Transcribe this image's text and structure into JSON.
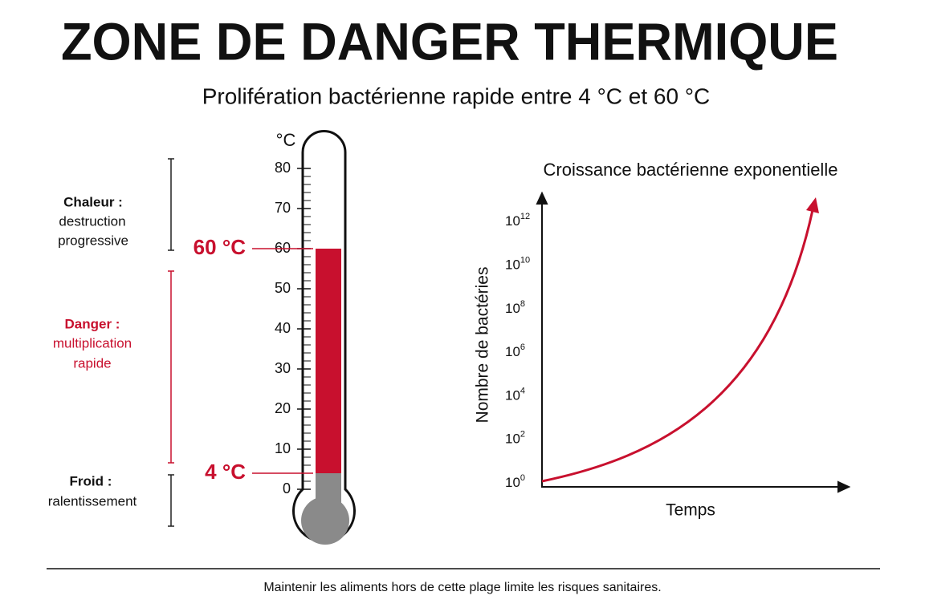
{
  "header": {
    "title": "ZONE DE DANGER THERMIQUE",
    "subtitle": "Prolifération bactérienne rapide entre 4 °C et 60 °C"
  },
  "thermometer": {
    "unit": "°C",
    "ticks": [
      0,
      10,
      20,
      30,
      40,
      50,
      60,
      70,
      80
    ],
    "markers": [
      {
        "value": 60,
        "label": "60 °C"
      },
      {
        "value": 4,
        "label": "4 °C"
      }
    ]
  },
  "zones": [
    {
      "title": "Chaleur :",
      "lines": [
        "destruction",
        "progressive"
      ]
    },
    {
      "title": "Danger :",
      "lines": [
        "multiplication",
        "rapide"
      ]
    },
    {
      "title": "Froid :",
      "lines": [
        "ralentissement"
      ]
    }
  ],
  "growth_chart": {
    "title": "Croissance bactérienne exponentielle",
    "y_label": "Nombre de bactéries",
    "x_label": "Temps",
    "yticks": [
      {
        "base": "10",
        "exp": "0"
      },
      {
        "base": "10",
        "exp": "2"
      },
      {
        "base": "10",
        "exp": "4"
      },
      {
        "base": "10",
        "exp": "6"
      },
      {
        "base": "10",
        "exp": "8"
      },
      {
        "base": "10",
        "exp": "10"
      },
      {
        "base": "10",
        "exp": "12"
      }
    ]
  },
  "footer": {
    "note": "Maintenir les aliments hors de cette plage limite les risques sanitaires."
  }
}
